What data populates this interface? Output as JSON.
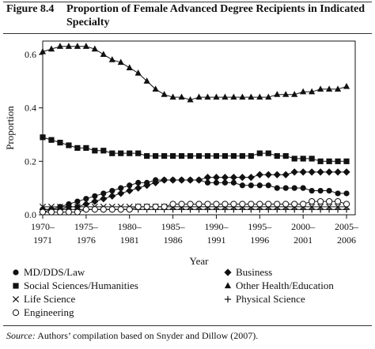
{
  "figure": {
    "number": "Figure 8.4",
    "title": "Proportion of Female Advanced Degree Recipients in Indicated Specialty"
  },
  "source": {
    "label": "Source:",
    "text": "Authors’ compilation based on Snyder and Dillow (2007)."
  },
  "chart_data": {
    "type": "line",
    "xlabel": "Year",
    "ylabel": "Proportion",
    "ylim": [
      0,
      0.65
    ],
    "yticks": [
      0.0,
      0.2,
      0.4,
      0.6
    ],
    "ytick_labels": [
      "0.0",
      "0.2",
      "0.4",
      "0.6"
    ],
    "xlim": [
      1970,
      2006
    ],
    "xticks": [
      1970,
      1975,
      1980,
      1985,
      1990,
      1995,
      2000,
      2005
    ],
    "xtick_labels": [
      [
        "1970–",
        "1971"
      ],
      [
        "1975–",
        "1976"
      ],
      [
        "1980–",
        "1981"
      ],
      [
        "1985–",
        "1986"
      ],
      [
        "1990–",
        "1991"
      ],
      [
        "1995–",
        "1996"
      ],
      [
        "2000–",
        "2001"
      ],
      [
        "2005–",
        "2006"
      ]
    ],
    "grid": false,
    "legend_position": "bottom",
    "x": [
      1970,
      1971,
      1972,
      1973,
      1974,
      1975,
      1976,
      1977,
      1978,
      1979,
      1980,
      1981,
      1982,
      1983,
      1984,
      1985,
      1986,
      1987,
      1988,
      1989,
      1990,
      1991,
      1992,
      1993,
      1994,
      1995,
      1996,
      1997,
      1998,
      1999,
      2000,
      2001,
      2002,
      2003,
      2004,
      2005
    ],
    "series": [
      {
        "name": "MD/DDS/Law",
        "marker": "circle-filled",
        "values": [
          0.02,
          0.02,
          0.03,
          0.04,
          0.05,
          0.06,
          0.07,
          0.08,
          0.09,
          0.1,
          0.11,
          0.12,
          0.12,
          0.13,
          0.13,
          0.13,
          0.13,
          0.13,
          0.13,
          0.12,
          0.12,
          0.12,
          0.12,
          0.11,
          0.11,
          0.11,
          0.11,
          0.1,
          0.1,
          0.1,
          0.1,
          0.09,
          0.09,
          0.09,
          0.08,
          0.08
        ]
      },
      {
        "name": "Business",
        "marker": "diamond-filled",
        "values": [
          0.01,
          0.02,
          0.02,
          0.03,
          0.03,
          0.04,
          0.05,
          0.06,
          0.07,
          0.08,
          0.09,
          0.1,
          0.11,
          0.12,
          0.13,
          0.13,
          0.13,
          0.13,
          0.13,
          0.14,
          0.14,
          0.14,
          0.14,
          0.14,
          0.14,
          0.15,
          0.15,
          0.15,
          0.15,
          0.16,
          0.16,
          0.16,
          0.16,
          0.16,
          0.16,
          0.16
        ]
      },
      {
        "name": "Social Sciences/Humanities",
        "marker": "square-filled",
        "values": [
          0.29,
          0.28,
          0.27,
          0.26,
          0.25,
          0.25,
          0.24,
          0.24,
          0.23,
          0.23,
          0.23,
          0.23,
          0.22,
          0.22,
          0.22,
          0.22,
          0.22,
          0.22,
          0.22,
          0.22,
          0.22,
          0.22,
          0.22,
          0.22,
          0.22,
          0.23,
          0.23,
          0.22,
          0.22,
          0.21,
          0.21,
          0.21,
          0.2,
          0.2,
          0.2,
          0.2
        ]
      },
      {
        "name": "Other Health/Education",
        "marker": "triangle-filled",
        "values": [
          0.61,
          0.62,
          0.63,
          0.63,
          0.63,
          0.63,
          0.62,
          0.6,
          0.58,
          0.57,
          0.55,
          0.53,
          0.5,
          0.47,
          0.45,
          0.44,
          0.44,
          0.43,
          0.44,
          0.44,
          0.44,
          0.44,
          0.44,
          0.44,
          0.44,
          0.44,
          0.44,
          0.45,
          0.45,
          0.45,
          0.46,
          0.46,
          0.47,
          0.47,
          0.47,
          0.48
        ]
      },
      {
        "name": "Life Science",
        "marker": "x",
        "values": [
          0.03,
          0.03,
          0.03,
          0.03,
          0.03,
          0.03,
          0.03,
          0.03,
          0.03,
          0.03,
          0.03,
          0.03,
          0.03,
          0.03,
          0.03,
          0.03,
          0.03,
          0.03,
          0.03,
          0.03,
          0.03,
          0.03,
          0.03,
          0.03,
          0.03,
          0.03,
          0.03,
          0.03,
          0.03,
          0.03,
          0.03,
          0.03,
          0.03,
          0.03,
          0.03,
          0.03
        ]
      },
      {
        "name": "Physical Science",
        "marker": "plus",
        "values": [
          0.02,
          0.02,
          0.02,
          0.02,
          0.02,
          0.02,
          0.02,
          0.02,
          0.02,
          0.02,
          0.02,
          0.02,
          0.02,
          0.02,
          0.02,
          0.02,
          0.02,
          0.02,
          0.02,
          0.02,
          0.02,
          0.02,
          0.02,
          0.02,
          0.02,
          0.02,
          0.02,
          0.02,
          0.02,
          0.02,
          0.02,
          0.02,
          0.02,
          0.02,
          0.02,
          0.02
        ]
      },
      {
        "name": "Engineering",
        "marker": "circle-open",
        "values": [
          0.01,
          0.01,
          0.01,
          0.01,
          0.01,
          0.02,
          0.02,
          0.02,
          0.02,
          0.02,
          0.02,
          0.03,
          0.03,
          0.03,
          0.03,
          0.04,
          0.04,
          0.04,
          0.04,
          0.04,
          0.04,
          0.04,
          0.04,
          0.04,
          0.04,
          0.04,
          0.04,
          0.04,
          0.04,
          0.04,
          0.04,
          0.05,
          0.05,
          0.05,
          0.05,
          0.04
        ]
      }
    ]
  }
}
